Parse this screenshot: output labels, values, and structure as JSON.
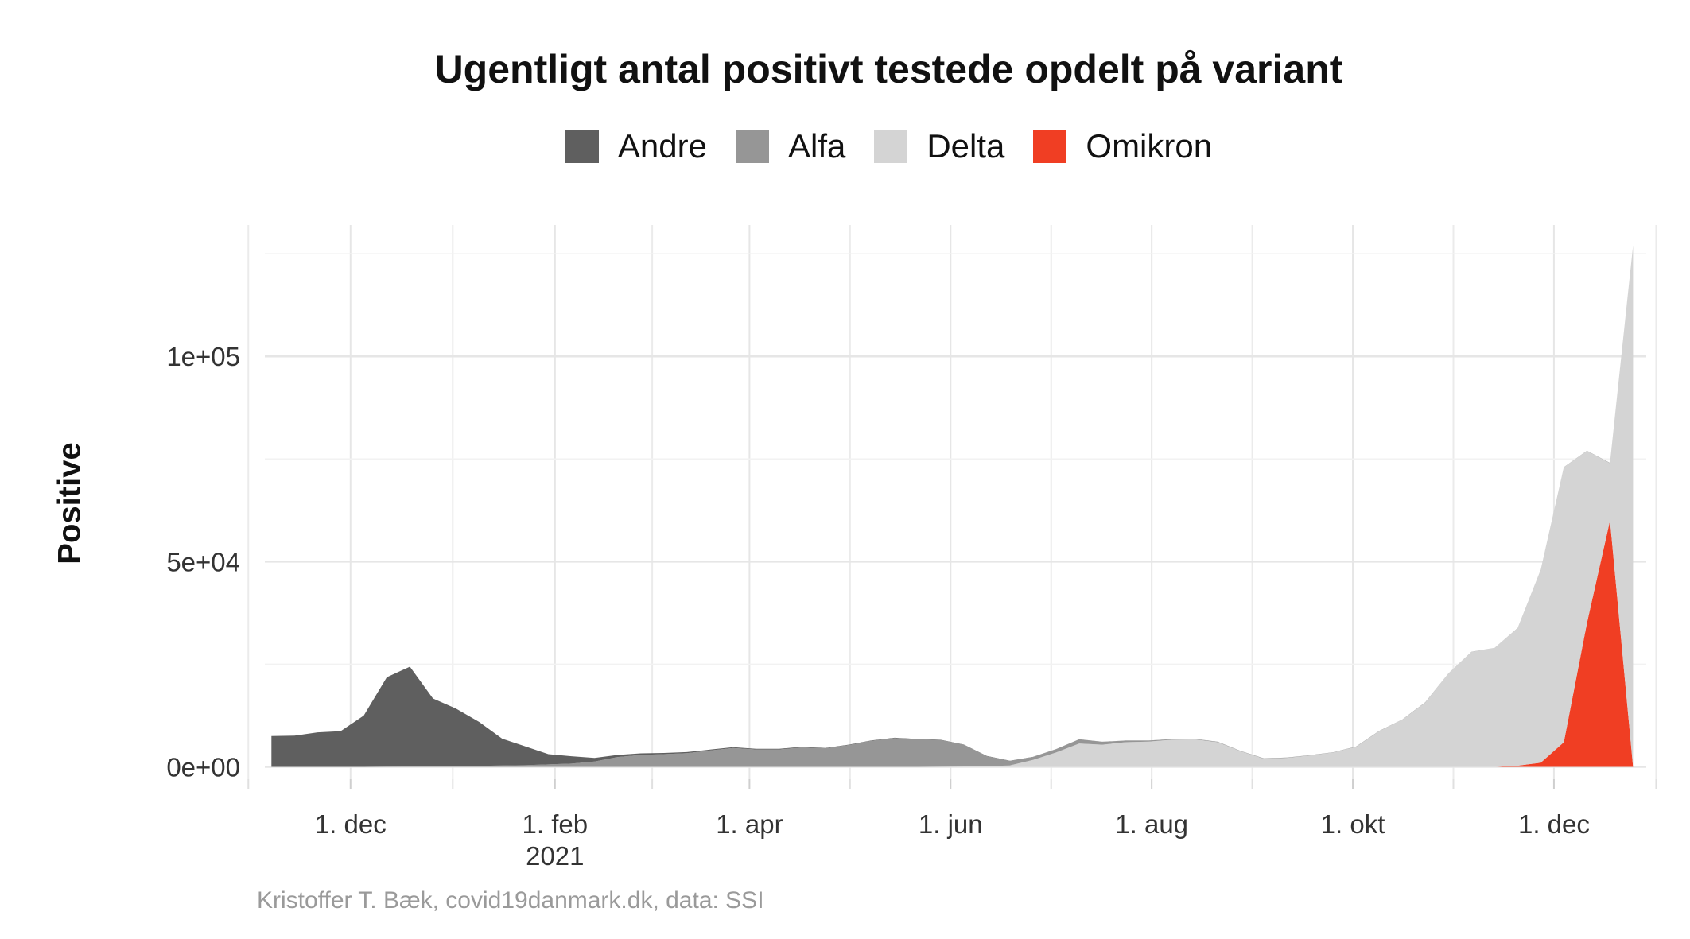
{
  "chart_data": {
    "type": "area",
    "stacked": true,
    "title": "Ugentligt antal positivt testede opdelt på variant",
    "xlabel": "",
    "ylabel": "Positive",
    "caption": "Kristoffer T. Bæk, covid19danmark.dk, data: SSI",
    "legend_position": "top",
    "grid": true,
    "x_axis": {
      "type": "date",
      "range": [
        "2020-11-05",
        "2021-12-29"
      ],
      "ticks": [
        {
          "date": "2020-12-01",
          "label": "1. dec",
          "sublabel": ""
        },
        {
          "date": "2021-02-01",
          "label": "1. feb",
          "sublabel": "2021"
        },
        {
          "date": "2021-04-01",
          "label": "1. apr",
          "sublabel": ""
        },
        {
          "date": "2021-06-01",
          "label": "1. jun",
          "sublabel": ""
        },
        {
          "date": "2021-08-01",
          "label": "1. aug",
          "sublabel": ""
        },
        {
          "date": "2021-10-01",
          "label": "1. okt",
          "sublabel": ""
        },
        {
          "date": "2021-12-01",
          "label": "1. dec",
          "sublabel": ""
        }
      ]
    },
    "y_axis": {
      "range": [
        -3000,
        132000
      ],
      "ticks": [
        {
          "value": 0,
          "label": "0e+00"
        },
        {
          "value": 50000,
          "label": "5e+04"
        },
        {
          "value": 100000,
          "label": "1e+05"
        }
      ]
    },
    "series": [
      {
        "name": "Andre",
        "color": "#5f5f5f",
        "points": [
          [
            "2020-11-07",
            7500
          ],
          [
            "2020-11-14",
            7600
          ],
          [
            "2020-11-21",
            8400
          ],
          [
            "2020-11-28",
            8700
          ],
          [
            "2020-12-05",
            12500
          ],
          [
            "2020-12-12",
            21800
          ],
          [
            "2020-12-19",
            24300
          ],
          [
            "2020-12-26",
            16500
          ],
          [
            "2021-01-02",
            14000
          ],
          [
            "2021-01-09",
            10700
          ],
          [
            "2021-01-16",
            6500
          ],
          [
            "2021-01-23",
            4600
          ],
          [
            "2021-01-30",
            2500
          ],
          [
            "2021-02-06",
            1800
          ],
          [
            "2021-02-13",
            900
          ],
          [
            "2021-02-20",
            500
          ],
          [
            "2021-02-27",
            400
          ],
          [
            "2021-03-06",
            300
          ],
          [
            "2021-03-13",
            250
          ],
          [
            "2021-03-20",
            200
          ],
          [
            "2021-03-27",
            200
          ],
          [
            "2021-04-03",
            150
          ],
          [
            "2021-04-10",
            150
          ],
          [
            "2021-04-17",
            150
          ],
          [
            "2021-04-24",
            100
          ],
          [
            "2021-05-01",
            100
          ],
          [
            "2021-05-08",
            100
          ],
          [
            "2021-05-15",
            100
          ],
          [
            "2021-05-22",
            50
          ],
          [
            "2021-05-29",
            50
          ],
          [
            "2021-06-05",
            50
          ],
          [
            "2021-06-12",
            50
          ],
          [
            "2021-06-19",
            50
          ],
          [
            "2021-06-26",
            50
          ],
          [
            "2021-07-03",
            50
          ],
          [
            "2021-07-10",
            50
          ],
          [
            "2021-07-17",
            20
          ],
          [
            "2021-07-24",
            20
          ],
          [
            "2021-07-31",
            20
          ],
          [
            "2021-08-07",
            20
          ],
          [
            "2021-08-14",
            20
          ],
          [
            "2021-08-21",
            20
          ],
          [
            "2021-08-28",
            20
          ],
          [
            "2021-09-04",
            20
          ],
          [
            "2021-09-11",
            20
          ],
          [
            "2021-09-18",
            20
          ],
          [
            "2021-09-25",
            20
          ],
          [
            "2021-10-02",
            20
          ],
          [
            "2021-10-09",
            20
          ],
          [
            "2021-10-16",
            20
          ],
          [
            "2021-10-23",
            20
          ],
          [
            "2021-10-30",
            20
          ],
          [
            "2021-11-06",
            20
          ],
          [
            "2021-11-13",
            20
          ],
          [
            "2021-11-20",
            20
          ],
          [
            "2021-11-27",
            20
          ],
          [
            "2021-12-04",
            20
          ],
          [
            "2021-12-11",
            20
          ],
          [
            "2021-12-18",
            20
          ],
          [
            "2021-12-25",
            20
          ]
        ]
      },
      {
        "name": "Alfa",
        "color": "#969696",
        "points": [
          [
            "2020-11-07",
            0
          ],
          [
            "2020-11-14",
            0
          ],
          [
            "2020-11-21",
            0
          ],
          [
            "2020-11-28",
            0
          ],
          [
            "2020-12-05",
            0
          ],
          [
            "2020-12-12",
            50
          ],
          [
            "2020-12-19",
            100
          ],
          [
            "2020-12-26",
            150
          ],
          [
            "2021-01-02",
            200
          ],
          [
            "2021-01-09",
            250
          ],
          [
            "2021-01-16",
            350
          ],
          [
            "2021-01-23",
            400
          ],
          [
            "2021-01-30",
            600
          ],
          [
            "2021-02-06",
            800
          ],
          [
            "2021-02-13",
            1300
          ],
          [
            "2021-02-20",
            2400
          ],
          [
            "2021-02-27",
            2900
          ],
          [
            "2021-03-06",
            3100
          ],
          [
            "2021-03-13",
            3350
          ],
          [
            "2021-03-20",
            4000
          ],
          [
            "2021-03-27",
            4600
          ],
          [
            "2021-04-03",
            4250
          ],
          [
            "2021-04-10",
            4250
          ],
          [
            "2021-04-17",
            4750
          ],
          [
            "2021-04-24",
            4500
          ],
          [
            "2021-05-01",
            5300
          ],
          [
            "2021-05-08",
            6350
          ],
          [
            "2021-05-15",
            7000
          ],
          [
            "2021-05-22",
            6750
          ],
          [
            "2021-05-29",
            6500
          ],
          [
            "2021-06-05",
            5300
          ],
          [
            "2021-06-12",
            2400
          ],
          [
            "2021-06-19",
            1100
          ],
          [
            "2021-06-26",
            700
          ],
          [
            "2021-07-03",
            800
          ],
          [
            "2021-07-10",
            1000
          ],
          [
            "2021-07-17",
            700
          ],
          [
            "2021-07-24",
            400
          ],
          [
            "2021-07-31",
            250
          ],
          [
            "2021-08-07",
            150
          ],
          [
            "2021-08-14",
            100
          ],
          [
            "2021-08-21",
            100
          ],
          [
            "2021-08-28",
            50
          ],
          [
            "2021-09-04",
            50
          ],
          [
            "2021-09-11",
            50
          ],
          [
            "2021-09-18",
            50
          ],
          [
            "2021-09-25",
            50
          ],
          [
            "2021-10-02",
            50
          ],
          [
            "2021-10-09",
            50
          ],
          [
            "2021-10-16",
            0
          ],
          [
            "2021-10-23",
            0
          ],
          [
            "2021-10-30",
            0
          ],
          [
            "2021-11-06",
            0
          ],
          [
            "2021-11-13",
            0
          ],
          [
            "2021-11-20",
            0
          ],
          [
            "2021-11-27",
            0
          ],
          [
            "2021-12-04",
            0
          ],
          [
            "2021-12-11",
            0
          ],
          [
            "2021-12-18",
            0
          ],
          [
            "2021-12-25",
            0
          ]
        ]
      },
      {
        "name": "Delta",
        "color": "#d4d4d4",
        "points": [
          [
            "2020-11-07",
            0
          ],
          [
            "2020-11-14",
            0
          ],
          [
            "2020-11-21",
            0
          ],
          [
            "2020-11-28",
            0
          ],
          [
            "2020-12-05",
            0
          ],
          [
            "2020-12-12",
            0
          ],
          [
            "2020-12-19",
            0
          ],
          [
            "2020-12-26",
            0
          ],
          [
            "2021-01-02",
            0
          ],
          [
            "2021-01-09",
            0
          ],
          [
            "2021-01-16",
            0
          ],
          [
            "2021-01-23",
            0
          ],
          [
            "2021-01-30",
            0
          ],
          [
            "2021-02-06",
            0
          ],
          [
            "2021-02-13",
            0
          ],
          [
            "2021-02-20",
            0
          ],
          [
            "2021-02-27",
            0
          ],
          [
            "2021-03-06",
            0
          ],
          [
            "2021-03-13",
            0
          ],
          [
            "2021-03-20",
            0
          ],
          [
            "2021-03-27",
            0
          ],
          [
            "2021-04-03",
            0
          ],
          [
            "2021-04-10",
            0
          ],
          [
            "2021-04-17",
            0
          ],
          [
            "2021-04-24",
            0
          ],
          [
            "2021-05-01",
            0
          ],
          [
            "2021-05-08",
            0
          ],
          [
            "2021-05-15",
            0
          ],
          [
            "2021-05-22",
            0
          ],
          [
            "2021-05-29",
            50
          ],
          [
            "2021-06-05",
            100
          ],
          [
            "2021-06-12",
            200
          ],
          [
            "2021-06-19",
            350
          ],
          [
            "2021-06-26",
            1700
          ],
          [
            "2021-07-03",
            3500
          ],
          [
            "2021-07-10",
            5700
          ],
          [
            "2021-07-17",
            5400
          ],
          [
            "2021-07-24",
            6000
          ],
          [
            "2021-07-31",
            6150
          ],
          [
            "2021-08-07",
            6600
          ],
          [
            "2021-08-14",
            6700
          ],
          [
            "2021-08-21",
            6000
          ],
          [
            "2021-08-28",
            3800
          ],
          [
            "2021-09-04",
            2000
          ],
          [
            "2021-09-11",
            2200
          ],
          [
            "2021-09-18",
            2800
          ],
          [
            "2021-09-25",
            3500
          ],
          [
            "2021-10-02",
            4900
          ],
          [
            "2021-10-09",
            8700
          ],
          [
            "2021-10-16",
            11500
          ],
          [
            "2021-10-23",
            15700
          ],
          [
            "2021-10-30",
            22800
          ],
          [
            "2021-11-06",
            28000
          ],
          [
            "2021-11-13",
            29000
          ],
          [
            "2021-11-20",
            33500
          ],
          [
            "2021-11-27",
            47000
          ],
          [
            "2021-12-04",
            67000
          ],
          [
            "2021-12-11",
            42000
          ],
          [
            "2021-12-18",
            14000
          ],
          [
            "2021-12-25",
            127000
          ]
        ]
      },
      {
        "name": "Omikron",
        "color": "#f03e23",
        "points": [
          [
            "2020-11-07",
            0
          ],
          [
            "2020-11-14",
            0
          ],
          [
            "2020-11-21",
            0
          ],
          [
            "2020-11-28",
            0
          ],
          [
            "2020-12-05",
            0
          ],
          [
            "2020-12-12",
            0
          ],
          [
            "2020-12-19",
            0
          ],
          [
            "2020-12-26",
            0
          ],
          [
            "2021-01-02",
            0
          ],
          [
            "2021-01-09",
            0
          ],
          [
            "2021-01-16",
            0
          ],
          [
            "2021-01-23",
            0
          ],
          [
            "2021-01-30",
            0
          ],
          [
            "2021-02-06",
            0
          ],
          [
            "2021-02-13",
            0
          ],
          [
            "2021-02-20",
            0
          ],
          [
            "2021-02-27",
            0
          ],
          [
            "2021-03-06",
            0
          ],
          [
            "2021-03-13",
            0
          ],
          [
            "2021-03-20",
            0
          ],
          [
            "2021-03-27",
            0
          ],
          [
            "2021-04-03",
            0
          ],
          [
            "2021-04-10",
            0
          ],
          [
            "2021-04-17",
            0
          ],
          [
            "2021-04-24",
            0
          ],
          [
            "2021-05-01",
            0
          ],
          [
            "2021-05-08",
            0
          ],
          [
            "2021-05-15",
            0
          ],
          [
            "2021-05-22",
            0
          ],
          [
            "2021-05-29",
            0
          ],
          [
            "2021-06-05",
            0
          ],
          [
            "2021-06-12",
            0
          ],
          [
            "2021-06-19",
            0
          ],
          [
            "2021-06-26",
            0
          ],
          [
            "2021-07-03",
            0
          ],
          [
            "2021-07-10",
            0
          ],
          [
            "2021-07-17",
            0
          ],
          [
            "2021-07-24",
            0
          ],
          [
            "2021-07-31",
            0
          ],
          [
            "2021-08-07",
            0
          ],
          [
            "2021-08-14",
            0
          ],
          [
            "2021-08-21",
            0
          ],
          [
            "2021-08-28",
            0
          ],
          [
            "2021-09-04",
            0
          ],
          [
            "2021-09-11",
            0
          ],
          [
            "2021-09-18",
            0
          ],
          [
            "2021-09-25",
            0
          ],
          [
            "2021-10-02",
            0
          ],
          [
            "2021-10-09",
            0
          ],
          [
            "2021-10-16",
            0
          ],
          [
            "2021-10-23",
            0
          ],
          [
            "2021-10-30",
            0
          ],
          [
            "2021-11-06",
            0
          ],
          [
            "2021-11-13",
            0
          ],
          [
            "2021-11-20",
            300
          ],
          [
            "2021-11-27",
            1000
          ],
          [
            "2021-12-04",
            6000
          ],
          [
            "2021-12-11",
            35000
          ],
          [
            "2021-12-18",
            60000
          ],
          [
            "2021-12-25",
            0
          ]
        ]
      }
    ]
  }
}
